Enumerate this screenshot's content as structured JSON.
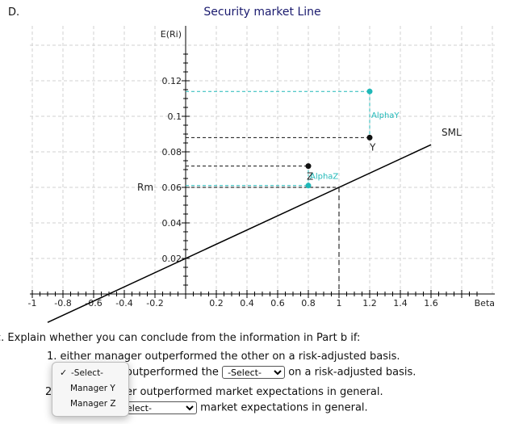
{
  "section_letter": "D.",
  "chart_data": {
    "type": "line",
    "title": "Security market Line",
    "xlabel": "Beta",
    "ylabel": "E(Ri)",
    "xlim": [
      -1,
      2
    ],
    "ylim": [
      0,
      0.14
    ],
    "x_ticks": [
      -1,
      -0.8,
      -0.6,
      -0.4,
      -0.2,
      0.2,
      0.4,
      0.6,
      0.8,
      1,
      1.2,
      1.4,
      1.6
    ],
    "x_tick_labels": [
      "-1",
      "-0.8",
      "-0.6",
      "-0.4",
      "-0.2",
      "0.2",
      "0.4",
      "0.6",
      "0.8",
      "1",
      "1.2",
      "1.4",
      "1.6"
    ],
    "y_ticks": [
      0.02,
      0.04,
      0.06,
      0.08,
      0.1,
      0.12
    ],
    "y_tick_labels": [
      "0.02",
      "0.04",
      "0.06",
      "0.08",
      "0.1",
      "0.12"
    ],
    "grid": true,
    "sml": {
      "label": "SML",
      "x": [
        -0.9,
        1.6
      ],
      "y": [
        -0.016,
        0.084
      ]
    },
    "rm": {
      "label": "Rm",
      "x": 1,
      "y": 0.06
    },
    "points": [
      {
        "label": "Y",
        "x": 1.2,
        "y": 0.088,
        "color": "#111111"
      },
      {
        "label": "Z",
        "x": 0.8,
        "y": 0.072,
        "color": "#111111"
      },
      {
        "label": "",
        "x": 1.2,
        "y": 0.114,
        "color": "#20b8b8"
      },
      {
        "label": "",
        "x": 0.8,
        "y": 0.061,
        "color": "#20b8b8"
      }
    ],
    "alpha_labels": [
      {
        "label": "AlphaY",
        "x": 1.2,
        "y": 0.101,
        "color": "#20b8b8"
      },
      {
        "label": "AlphaZ",
        "x": 0.8,
        "y": 0.0665,
        "color": "#20b8b8"
      }
    ],
    "colors": {
      "sml": "#000000",
      "guides": "#000000",
      "alpha": "#20b8b8",
      "grid": "#d0d0d0"
    }
  },
  "question": {
    "prompt": "c. Explain whether you can conclude from the information in Part b if:",
    "item1_number": "1.",
    "item1_text": "either manager outperformed the other on a risk-adjusted basis.",
    "item1_sub_text": "outperformed the",
    "item1_select_value": "-Select-",
    "item1_sub_end": "on a risk-adjusted basis.",
    "item2_number": "2.",
    "item2_text": "er outperformed market expectations in general.",
    "item2_select_value": "elect-",
    "item2_sub_end": "market expectations in general."
  },
  "dropdown": {
    "options": [
      "-Select-",
      "Manager Y",
      "Manager Z"
    ],
    "selected": "-Select-",
    "check_glyph": "✓"
  }
}
